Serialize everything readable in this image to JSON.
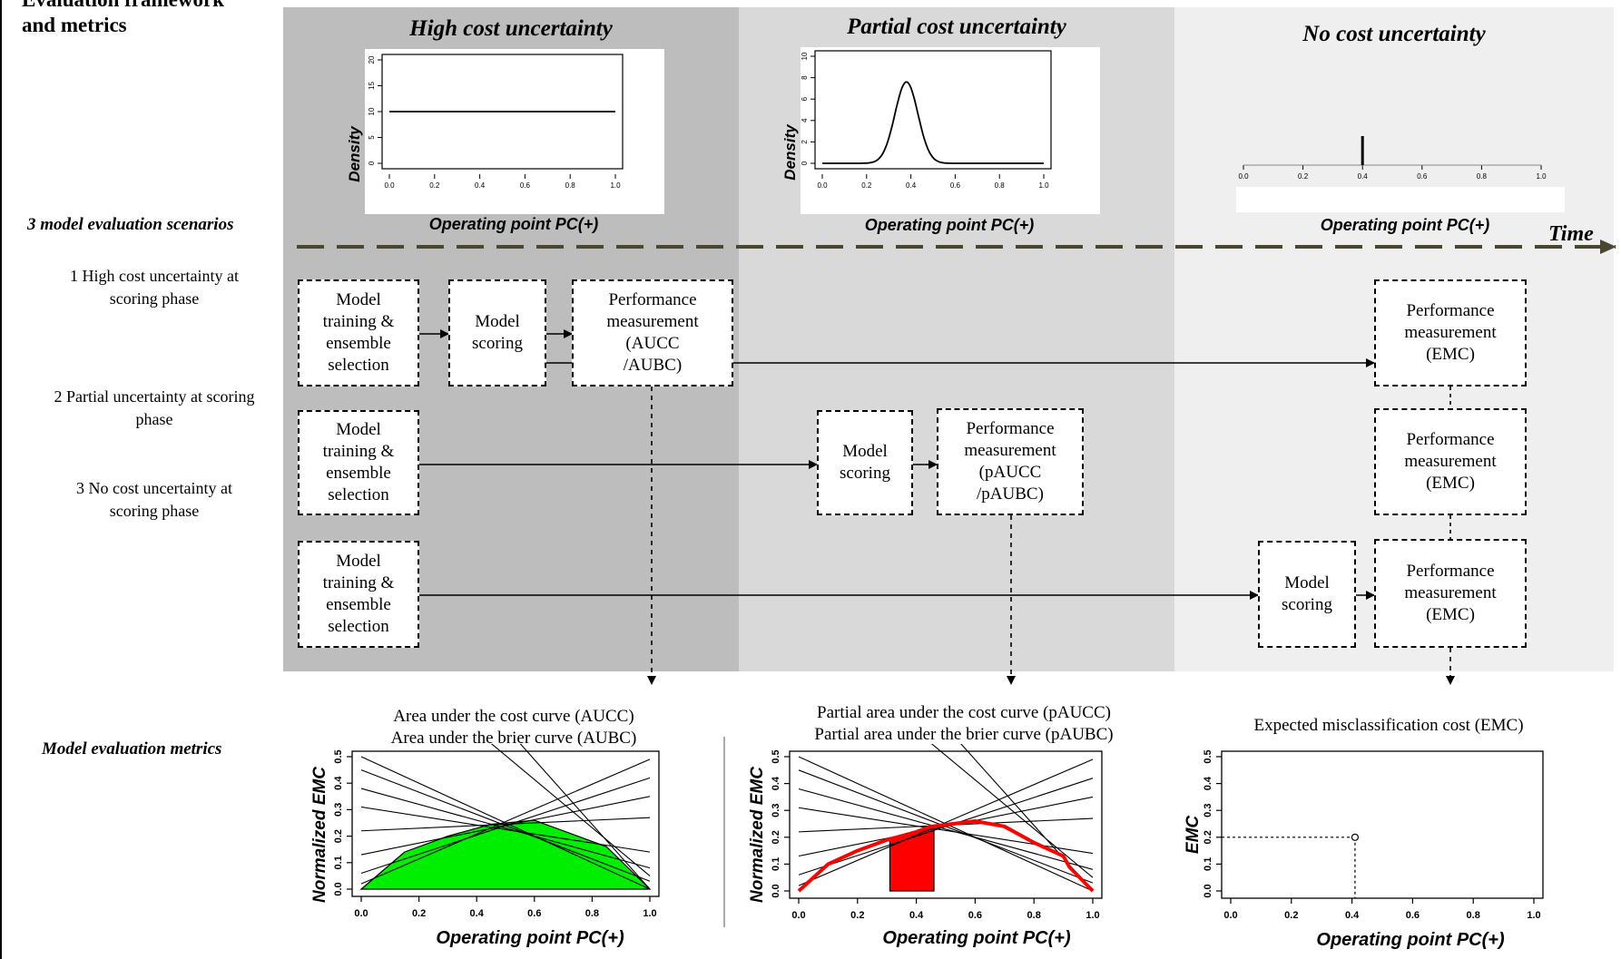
{
  "framework_title": "Evaluation framework\nand metrics",
  "section_labels": {
    "scenarios": "3 model evaluation scenarios",
    "metrics": "Model evaluation metrics"
  },
  "columns": [
    {
      "title": "High cost uncertainty"
    },
    {
      "title": "Partial cost uncertainty"
    },
    {
      "title": "No cost uncertainty"
    }
  ],
  "density_plots": {
    "ylabel": "Density",
    "xlabel": "Operating point PC(+)",
    "high": {
      "y_ticks": [
        "0",
        "5",
        "10",
        "15",
        "20"
      ],
      "x_ticks": [
        "0.0",
        "0.2",
        "0.4",
        "0.6",
        "0.8",
        "1.0"
      ]
    },
    "partial": {
      "y_ticks": [
        "0",
        "2",
        "4",
        "6",
        "8",
        "10"
      ],
      "x_ticks": [
        "0.0",
        "0.2",
        "0.4",
        "0.6",
        "0.8",
        "1.0"
      ]
    },
    "none": {
      "x_ticks": [
        "0.0",
        "0.2",
        "0.4",
        "0.6",
        "0.8",
        "1.0"
      ]
    }
  },
  "time_label": "Time",
  "scenarios": [
    {
      "label": "1 High cost uncertainty at\nscoring phase"
    },
    {
      "label": "2 Partial uncertainty at scoring\nphase"
    },
    {
      "label": "3 No cost uncertainty at\nscoring phase"
    }
  ],
  "boxes": {
    "train": "Model\ntraining &\nensemble\nselection",
    "scoring": "Model\nscoring",
    "perf_aucc": "Performance\nmeasurement\n(AUCC\n/AUBC)",
    "perf_pau": "Performance\nmeasurement\n(pAUCC\n/pAUBC)",
    "perf_emc": "Performance\nmeasurement\n(EMC)"
  },
  "metrics": [
    {
      "title": "Area under the cost curve (AUCC)\nArea under the brier curve (AUBC)"
    },
    {
      "title": "Partial area under the cost curve (pAUCC)\nPartial area under the brier curve (pAUBC)"
    },
    {
      "title": "Expected misclassification cost (EMC)"
    }
  ],
  "chart_data": [
    {
      "type": "line",
      "title": "",
      "ylabel": "Density",
      "xlabel": "Operating point PC(+)",
      "xlim": [
        0,
        1
      ],
      "ylim": [
        0,
        20
      ],
      "x": [
        0,
        1
      ],
      "y": [
        10,
        10
      ]
    },
    {
      "type": "line",
      "title": "",
      "ylabel": "Density",
      "xlabel": "Operating point PC(+)",
      "xlim": [
        0,
        1
      ],
      "ylim": [
        0,
        10
      ],
      "x": [
        0.0,
        0.2,
        0.28,
        0.33,
        0.36,
        0.38,
        0.4,
        0.43,
        0.48,
        0.6,
        1.0
      ],
      "y": [
        0,
        0.05,
        1.2,
        4.5,
        7.0,
        7.6,
        7.0,
        4.5,
        1.2,
        0.05,
        0
      ]
    },
    {
      "type": "line",
      "title": "",
      "xlabel": "Operating point PC(+)",
      "xlim": [
        0,
        1
      ],
      "spike_at": 0.4
    },
    {
      "type": "area",
      "title": "Area under the cost curve (AUCC)",
      "ylabel": "Normalized EMC",
      "xlabel": "Operating point PC(+)",
      "xlim": [
        0,
        1
      ],
      "ylim": [
        0,
        0.5
      ],
      "y_ticks": [
        "0.0",
        "0.1",
        "0.2",
        "0.3",
        "0.4",
        "0.5"
      ],
      "x_ticks": [
        "0.0",
        "0.2",
        "0.4",
        "0.6",
        "0.8",
        "1.0"
      ],
      "lines": [
        [
          0.0,
          0.5,
          1.0,
          0.0
        ],
        [
          0.0,
          0.45,
          1.0,
          0.03
        ],
        [
          0.0,
          0.38,
          1.0,
          0.08
        ],
        [
          0.0,
          0.31,
          1.0,
          0.14
        ],
        [
          0.0,
          0.22,
          1.0,
          0.27
        ],
        [
          0.0,
          0.13,
          1.0,
          0.35
        ],
        [
          0.0,
          0.06,
          1.0,
          0.42
        ],
        [
          0.0,
          0.02,
          1.0,
          0.49
        ],
        [
          0.45,
          0.55,
          1.0,
          0.05
        ],
        [
          0.55,
          0.55,
          1.0,
          0.0
        ]
      ],
      "envelope_x": [
        0,
        0.15,
        0.3,
        0.45,
        0.6,
        0.75,
        0.85,
        1.0
      ],
      "envelope_y": [
        0,
        0.14,
        0.2,
        0.245,
        0.26,
        0.2,
        0.16,
        0
      ]
    },
    {
      "type": "area",
      "title": "Partial area under the cost curve (pAUCC)",
      "ylabel": "Normalized EMC",
      "xlabel": "Operating point PC(+)",
      "xlim": [
        0,
        1
      ],
      "ylim": [
        0,
        0.5
      ],
      "y_ticks": [
        "0.0",
        "0.1",
        "0.2",
        "0.3",
        "0.4",
        "0.5"
      ],
      "x_ticks": [
        "0.0",
        "0.2",
        "0.4",
        "0.6",
        "0.8",
        "1.0"
      ],
      "lines": [
        [
          0.0,
          0.5,
          1.0,
          0.0
        ],
        [
          0.0,
          0.45,
          1.0,
          0.03
        ],
        [
          0.0,
          0.38,
          1.0,
          0.08
        ],
        [
          0.0,
          0.31,
          1.0,
          0.14
        ],
        [
          0.0,
          0.22,
          1.0,
          0.27
        ],
        [
          0.0,
          0.13,
          1.0,
          0.35
        ],
        [
          0.0,
          0.06,
          1.0,
          0.42
        ],
        [
          0.0,
          0.02,
          1.0,
          0.49
        ],
        [
          0.45,
          0.55,
          1.0,
          0.05
        ],
        [
          0.55,
          0.55,
          1.0,
          0.0
        ]
      ],
      "envelope_x": [
        0,
        0.1,
        0.2,
        0.3,
        0.4,
        0.45,
        0.6,
        0.7,
        0.8,
        0.9,
        0.92,
        1.0
      ],
      "envelope_y": [
        0,
        0.1,
        0.15,
        0.19,
        0.22,
        0.24,
        0.26,
        0.24,
        0.18,
        0.13,
        0.09,
        0
      ],
      "partial_range": [
        0.31,
        0.46
      ]
    },
    {
      "type": "scatter",
      "title": "Expected misclassification cost (EMC)",
      "ylabel": "EMC",
      "xlabel": "Operating point PC(+)",
      "xlim": [
        0,
        1
      ],
      "ylim": [
        0,
        0.5
      ],
      "y_ticks": [
        "0.0",
        "0.1",
        "0.2",
        "0.3",
        "0.4",
        "0.5"
      ],
      "x_ticks": [
        "0.0",
        "0.2",
        "0.4",
        "0.6",
        "0.8",
        "1.0"
      ],
      "x": [
        0.41
      ],
      "y": [
        0.2
      ]
    }
  ]
}
